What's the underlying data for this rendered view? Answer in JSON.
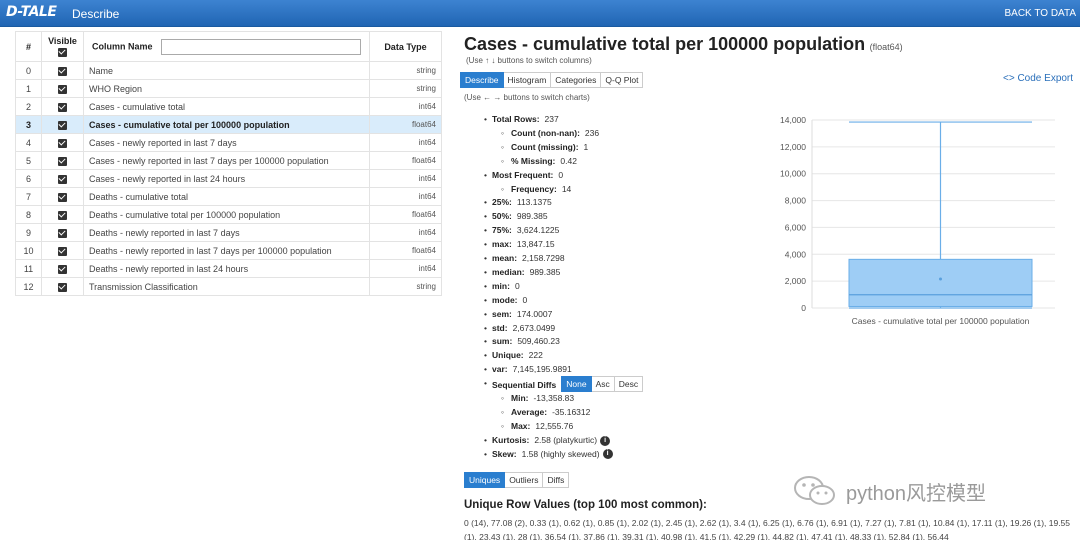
{
  "header": {
    "logo": "D-TALE",
    "title": "Describe",
    "back_link": "BACK TO DATA"
  },
  "columns_table": {
    "headers": {
      "index": "#",
      "visible": "Visible",
      "name": "Column Name",
      "dtype": "Data Type"
    },
    "filter_value": "",
    "selected_index": 3,
    "rows": [
      {
        "index": "0",
        "name": "Name",
        "dtype": "string"
      },
      {
        "index": "1",
        "name": "WHO Region",
        "dtype": "string"
      },
      {
        "index": "2",
        "name": "Cases - cumulative total",
        "dtype": "int64"
      },
      {
        "index": "3",
        "name": "Cases - cumulative total per 100000 population",
        "dtype": "float64"
      },
      {
        "index": "4",
        "name": "Cases - newly reported in last 7 days",
        "dtype": "int64"
      },
      {
        "index": "5",
        "name": "Cases - newly reported in last 7 days per 100000 population",
        "dtype": "float64"
      },
      {
        "index": "6",
        "name": "Cases - newly reported in last 24 hours",
        "dtype": "int64"
      },
      {
        "index": "7",
        "name": "Deaths - cumulative total",
        "dtype": "int64"
      },
      {
        "index": "8",
        "name": "Deaths - cumulative total per 100000 population",
        "dtype": "float64"
      },
      {
        "index": "9",
        "name": "Deaths - newly reported in last 7 days",
        "dtype": "int64"
      },
      {
        "index": "10",
        "name": "Deaths - newly reported in last 7 days per 100000 population",
        "dtype": "float64"
      },
      {
        "index": "11",
        "name": "Deaths - newly reported in last 24 hours",
        "dtype": "int64"
      },
      {
        "index": "12",
        "name": "Transmission Classification",
        "dtype": "string"
      }
    ]
  },
  "details": {
    "title": "Cases - cumulative total per 100000 population",
    "dtype": "(float64)",
    "hint_columns": "(Use ↑ ↓ buttons to switch columns)",
    "tabs": [
      "Describe",
      "Histogram",
      "Categories",
      "Q-Q Plot"
    ],
    "active_tab": "Describe",
    "hint_charts": "(Use ← → buttons to switch charts)",
    "code_export": "<> Code Export"
  },
  "stats": [
    {
      "level": 0,
      "label": "Total Rows:",
      "value": "237"
    },
    {
      "level": 1,
      "label": "Count (non-nan):",
      "value": "236"
    },
    {
      "level": 1,
      "label": "Count (missing):",
      "value": "1"
    },
    {
      "level": 1,
      "label": "% Missing:",
      "value": "0.42"
    },
    {
      "level": 0,
      "label": "Most Frequent:",
      "value": "0"
    },
    {
      "level": 1,
      "label": "Frequency:",
      "value": "14"
    },
    {
      "level": 0,
      "label": "25%:",
      "value": "113.1375"
    },
    {
      "level": 0,
      "label": "50%:",
      "value": "989.385"
    },
    {
      "level": 0,
      "label": "75%:",
      "value": "3,624.1225"
    },
    {
      "level": 0,
      "label": "max:",
      "value": "13,847.15"
    },
    {
      "level": 0,
      "label": "mean:",
      "value": "2,158.7298"
    },
    {
      "level": 0,
      "label": "median:",
      "value": "989.385"
    },
    {
      "level": 0,
      "label": "min:",
      "value": "0"
    },
    {
      "level": 0,
      "label": "mode:",
      "value": "0"
    },
    {
      "level": 0,
      "label": "sem:",
      "value": "174.0007"
    },
    {
      "level": 0,
      "label": "std:",
      "value": "2,673.0499"
    },
    {
      "level": 0,
      "label": "sum:",
      "value": "509,460.23"
    },
    {
      "level": 0,
      "label": "Unique:",
      "value": "222"
    },
    {
      "level": 0,
      "label": "var:",
      "value": "7,145,195.9891"
    },
    {
      "level": 0,
      "label": "Sequential Diffs",
      "value": "",
      "buttons": [
        "None",
        "Asc",
        "Desc"
      ],
      "active": "None"
    },
    {
      "level": 1,
      "label": "Min:",
      "value": "-13,358.83"
    },
    {
      "level": 1,
      "label": "Average:",
      "value": "-35.16312"
    },
    {
      "level": 1,
      "label": "Max:",
      "value": "12,555.76"
    },
    {
      "level": 0,
      "label": "Kurtosis:",
      "value": "2.58 (platykurtic)",
      "info": true
    },
    {
      "level": 0,
      "label": "Skew:",
      "value": "1.58 (highly skewed)",
      "info": true
    }
  ],
  "bottom_tabs": [
    "Uniques",
    "Outliers",
    "Diffs"
  ],
  "bottom_active": "Uniques",
  "unique_title": "Unique Row Values (top 100 most common):",
  "unique_values": "0 (14), 77.08 (2), 0.33 (1), 0.62 (1), 0.85 (1), 2.02 (1), 2.45 (1), 2.62 (1), 3.4 (1), 6.25 (1), 6.76 (1), 6.91 (1), 7.27 (1), 7.81 (1), 10.84 (1), 17.11 (1), 19.26 (1), 19.55 (1), 23.43 (1), 28 (1), 36.54 (1), 37.86 (1), 39.31 (1), 40.98 (1), 41.5 (1), 42.29 (1), 44.82 (1), 47.41 (1), 48.33 (1), 52.84 (1), 56.44",
  "chart_data": {
    "type": "box",
    "categories": [
      "Cases - cumulative total per 100000 population"
    ],
    "min": 0,
    "q1": 113.1375,
    "median": 989.385,
    "q3": 3624.1225,
    "max": 13847.15,
    "mean": 2158.7298,
    "ylim": [
      0,
      14000
    ],
    "yticks": [
      "0",
      "2,000",
      "4,000",
      "6,000",
      "8,000",
      "10,000",
      "12,000",
      "14,000"
    ],
    "grid": true,
    "color": "#9ecdf5",
    "line_color": "#6aaee8"
  },
  "watermark": "python风控模型"
}
